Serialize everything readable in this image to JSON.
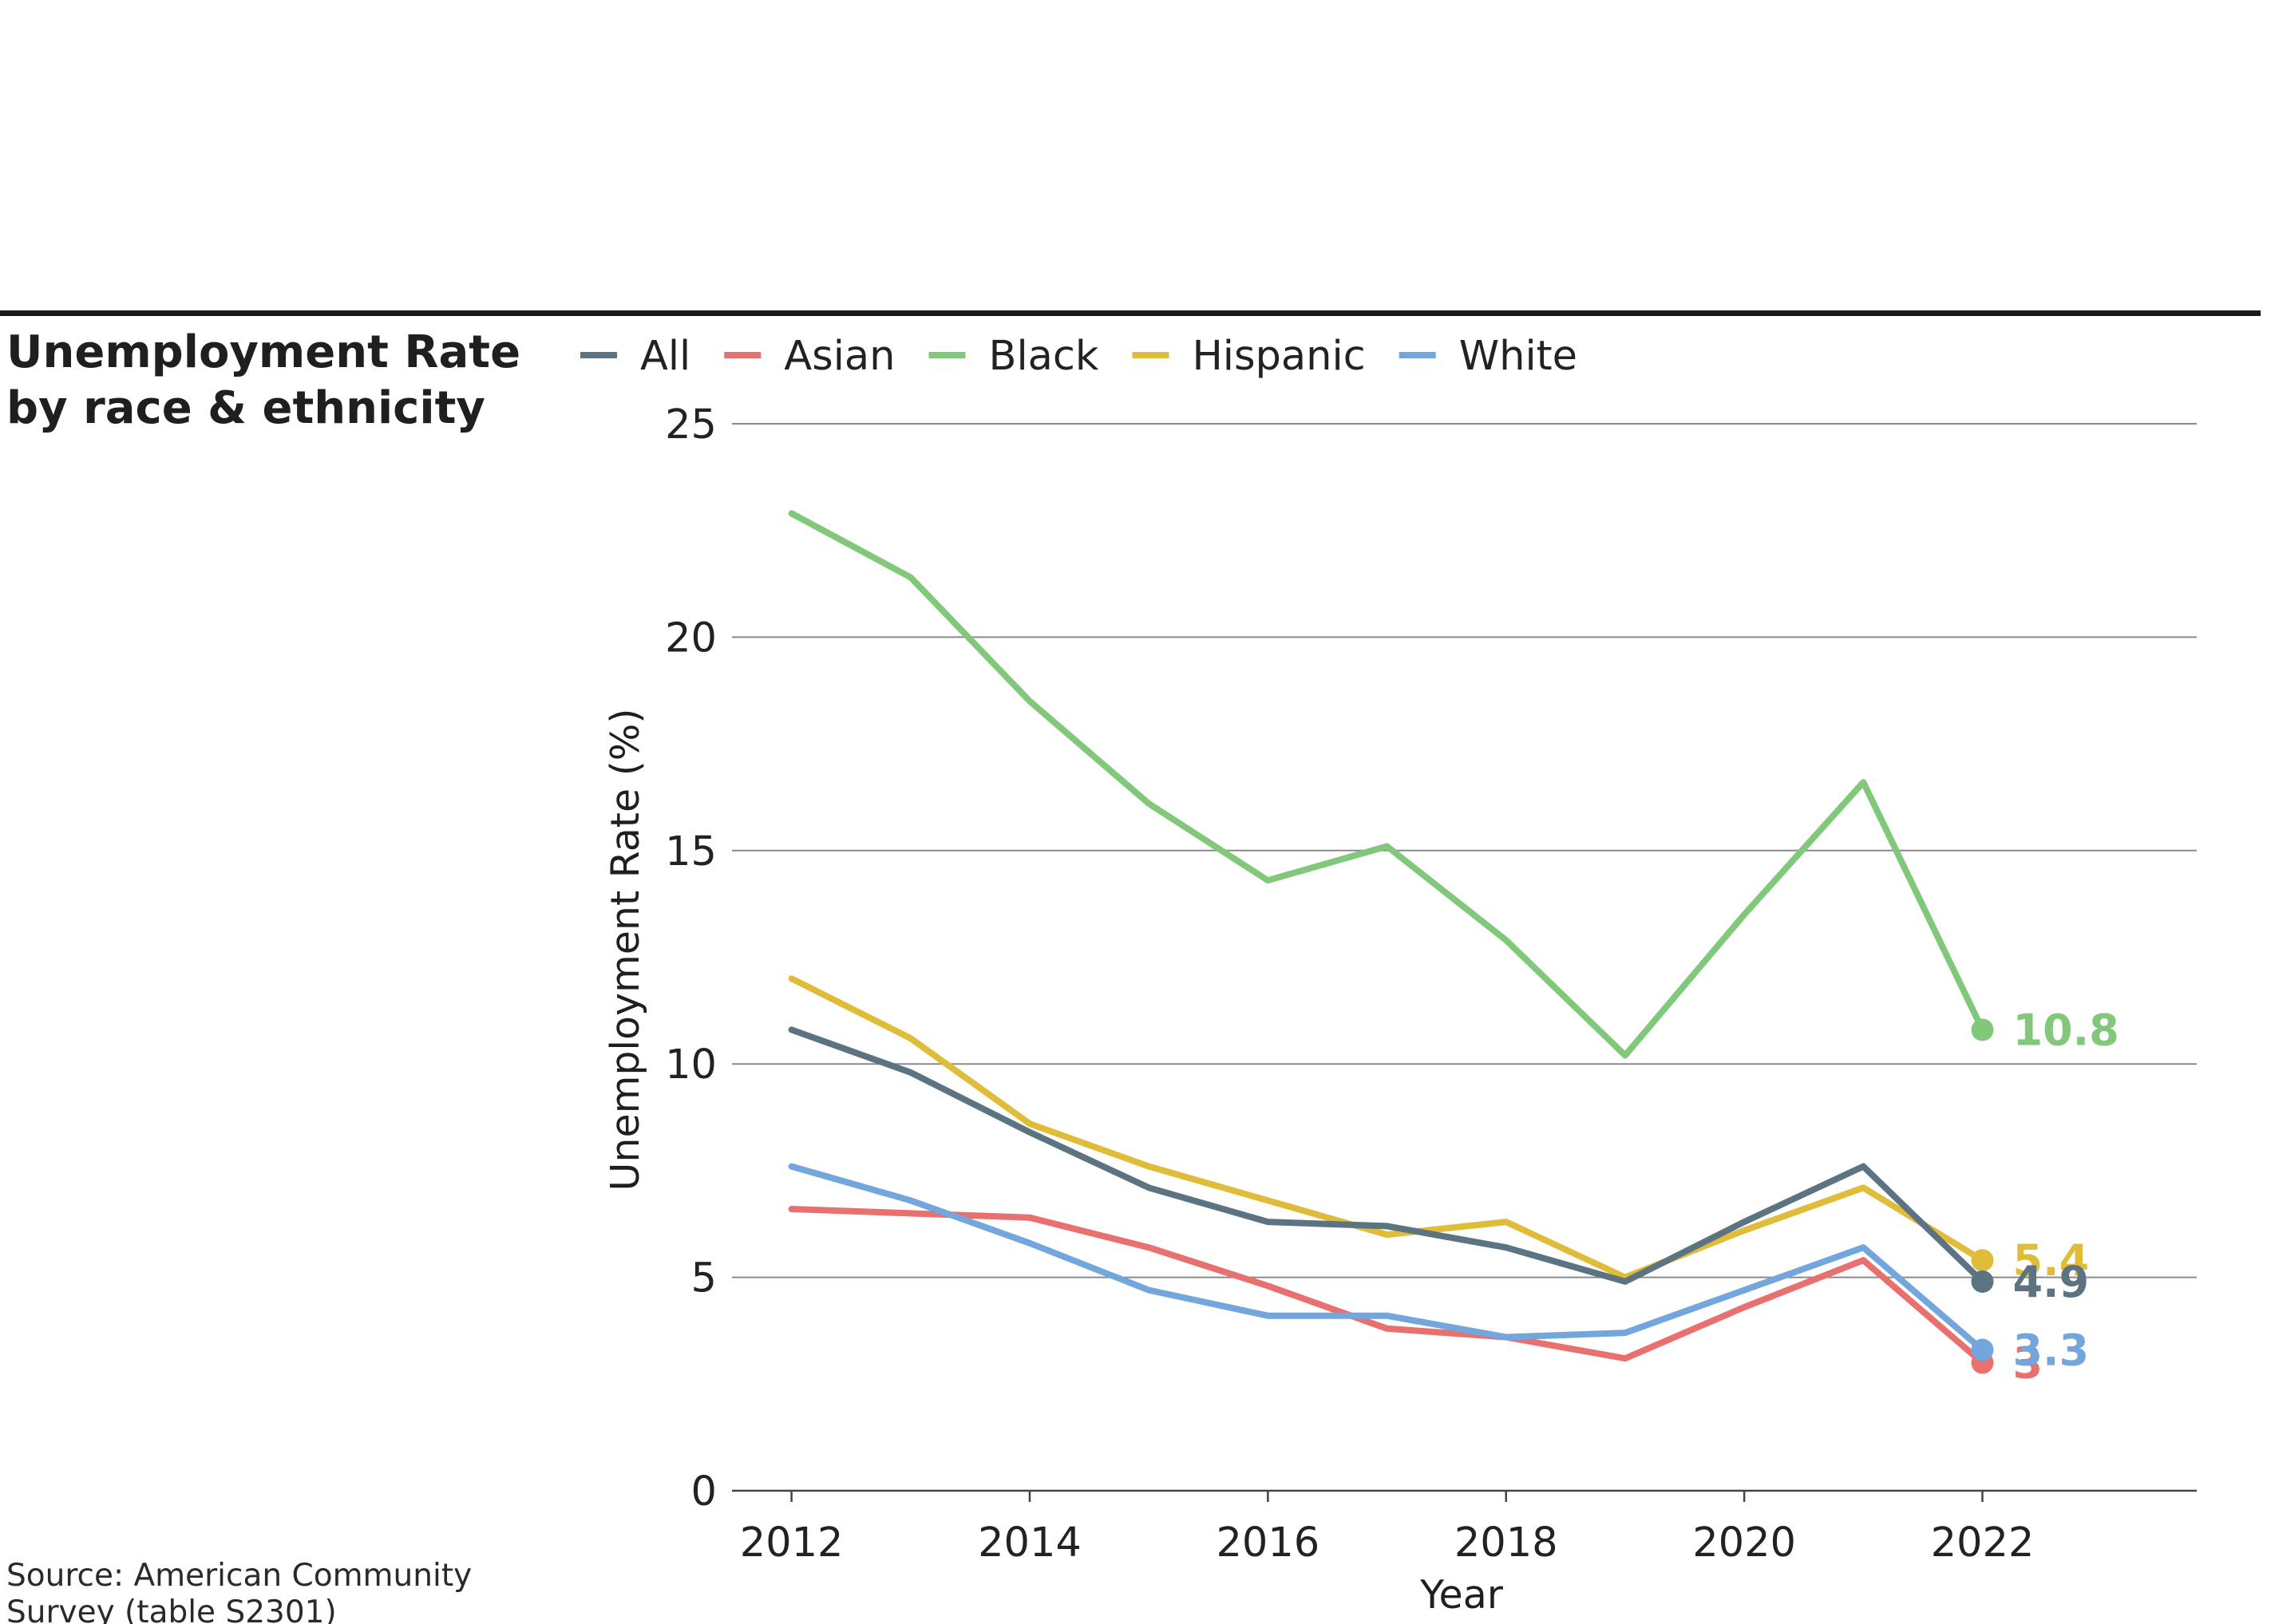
{
  "title_lines": [
    "Unemployment Rate",
    "by race & ethnicity"
  ],
  "source_lines": [
    "Source: American Community",
    "Survey (table S2301)"
  ],
  "chart_data": {
    "type": "line",
    "title": "Unemployment Rate by race & ethnicity",
    "xlabel": "Year",
    "ylabel": "Unemployment Rate (%)",
    "x": [
      2012,
      2013,
      2014,
      2015,
      2016,
      2017,
      2018,
      2019,
      2020,
      2021,
      2022
    ],
    "xlim": [
      2011.5,
      2023.8
    ],
    "ylim": [
      0,
      25
    ],
    "x_ticks": [
      2012,
      2014,
      2016,
      2018,
      2020,
      2022
    ],
    "y_ticks": [
      0,
      5,
      10,
      15,
      20,
      25
    ],
    "grid": "horizontal",
    "legend_placement": "top",
    "series": [
      {
        "name": "All",
        "color": "#5c7382",
        "values": [
          10.8,
          9.8,
          8.4,
          7.1,
          6.3,
          6.2,
          5.7,
          4.9,
          6.3,
          7.6,
          4.9
        ],
        "end_label": "4.9"
      },
      {
        "name": "Asian",
        "color": "#e8706e",
        "values": [
          6.6,
          6.5,
          6.4,
          5.7,
          4.8,
          3.8,
          3.6,
          3.1,
          4.3,
          5.4,
          3.0
        ],
        "end_label": "3"
      },
      {
        "name": "Black",
        "color": "#82c87a",
        "values": [
          22.9,
          21.4,
          18.5,
          16.1,
          14.3,
          15.1,
          12.9,
          10.2,
          13.5,
          16.6,
          10.8
        ],
        "end_label": "10.8"
      },
      {
        "name": "Hispanic",
        "color": "#dfbc3a",
        "values": [
          12.0,
          10.6,
          8.6,
          7.6,
          6.8,
          6.0,
          6.3,
          5.0,
          6.1,
          7.1,
          5.4
        ],
        "end_label": "5.4"
      },
      {
        "name": "White",
        "color": "#72a6dc",
        "values": [
          7.6,
          6.8,
          5.8,
          4.7,
          4.1,
          4.1,
          3.6,
          3.7,
          4.7,
          5.7,
          3.3
        ],
        "end_label": "3.3"
      }
    ]
  }
}
